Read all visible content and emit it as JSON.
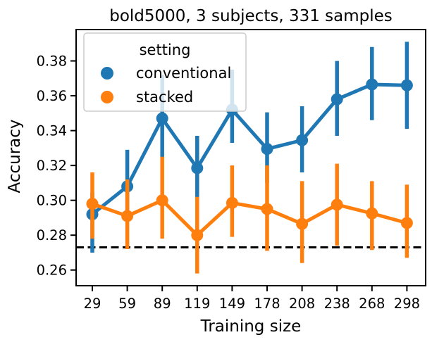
{
  "chart_data": {
    "type": "line",
    "title": "bold5000, 3 subjects, 331 samples",
    "xlabel": "Training size",
    "ylabel": "Accuracy",
    "categories": [
      "29",
      "59",
      "89",
      "119",
      "149",
      "178",
      "208",
      "238",
      "268",
      "298"
    ],
    "yticks": [
      "0.26",
      "0.28",
      "0.30",
      "0.32",
      "0.34",
      "0.36",
      "0.38"
    ],
    "ylim": [
      0.251,
      0.398
    ],
    "grid": false,
    "legend": {
      "title": "setting",
      "placement": "top-left"
    },
    "reference_line": {
      "y": 0.273,
      "style": "dashed",
      "color": "#000000"
    },
    "series": [
      {
        "name": "conventional",
        "color": "#1f77b4",
        "values": [
          0.292,
          0.308,
          0.347,
          0.3185,
          0.352,
          0.3295,
          0.3345,
          0.358,
          0.3665,
          0.366
        ],
        "err_low": [
          0.27,
          0.29,
          0.324,
          0.301,
          0.333,
          0.31,
          0.316,
          0.337,
          0.346,
          0.341
        ],
        "err_high": [
          0.3045,
          0.329,
          0.372,
          0.337,
          0.375,
          0.3505,
          0.354,
          0.38,
          0.388,
          0.391
        ]
      },
      {
        "name": "stacked",
        "color": "#ff7f0e",
        "values": [
          0.298,
          0.291,
          0.3,
          0.28,
          0.2985,
          0.295,
          0.2865,
          0.2975,
          0.2925,
          0.287
        ],
        "err_low": [
          0.278,
          0.272,
          0.278,
          0.258,
          0.279,
          0.271,
          0.264,
          0.274,
          0.2715,
          0.267
        ],
        "err_high": [
          0.316,
          0.312,
          0.325,
          0.302,
          0.32,
          0.32,
          0.311,
          0.321,
          0.311,
          0.309
        ]
      }
    ]
  }
}
